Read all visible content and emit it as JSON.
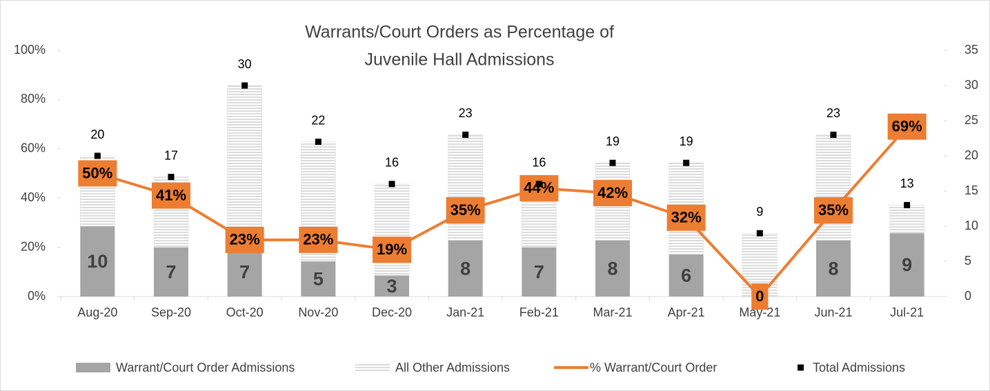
{
  "chart_data": {
    "type": "combo",
    "title": [
      "Warrants/Court Orders as Percentage of",
      "Juvenile Hall Admissions"
    ],
    "categories": [
      "Aug-20",
      "Sep-20",
      "Oct-20",
      "Nov-20",
      "Dec-20",
      "Jan-21",
      "Feb-21",
      "Mar-21",
      "Apr-21",
      "May-21",
      "Jun-21",
      "Jul-21"
    ],
    "ylim": [
      0,
      100
    ],
    "yticks": [
      {
        "value": 0,
        "label": "0%"
      },
      {
        "value": 20,
        "label": "20%"
      },
      {
        "value": 40,
        "label": "40%"
      },
      {
        "value": 60,
        "label": "60%"
      },
      {
        "value": 80,
        "label": "80%"
      },
      {
        "value": 100,
        "label": "100%"
      }
    ],
    "y2lim": [
      0,
      35
    ],
    "y2ticks": [
      0,
      5,
      10,
      15,
      20,
      25,
      30,
      35
    ],
    "series": [
      {
        "name": "Warrant/Court Order Admissions",
        "type": "bar",
        "axis": "y2",
        "color": "#a5a5a5",
        "values": [
          10,
          7,
          7,
          5,
          3,
          8,
          7,
          8,
          6,
          0,
          8,
          9
        ]
      },
      {
        "name": "All Other Admissions",
        "type": "hatched-bar",
        "axis": "y2",
        "color": "#d9d9d9",
        "values": [
          10,
          10,
          23,
          17,
          13,
          15,
          9,
          11,
          13,
          9,
          15,
          4
        ]
      },
      {
        "name": "% Warrant/Court Order",
        "type": "line",
        "color": "#ed7d31",
        "values": [
          50,
          41,
          23,
          23,
          19,
          35,
          44,
          42,
          32,
          0,
          35,
          69
        ],
        "value_labels": [
          "50%",
          "41%",
          "23%",
          "23%",
          "19%",
          "35%",
          "44%",
          "42%",
          "32%",
          "0",
          "35%",
          "69%"
        ]
      },
      {
        "name": "Total Admissions",
        "type": "marker",
        "axis": "y2",
        "color": "#000000",
        "values": [
          20,
          17,
          30,
          22,
          16,
          23,
          16,
          19,
          19,
          9,
          23,
          13
        ]
      }
    ],
    "legend": "bottom"
  }
}
